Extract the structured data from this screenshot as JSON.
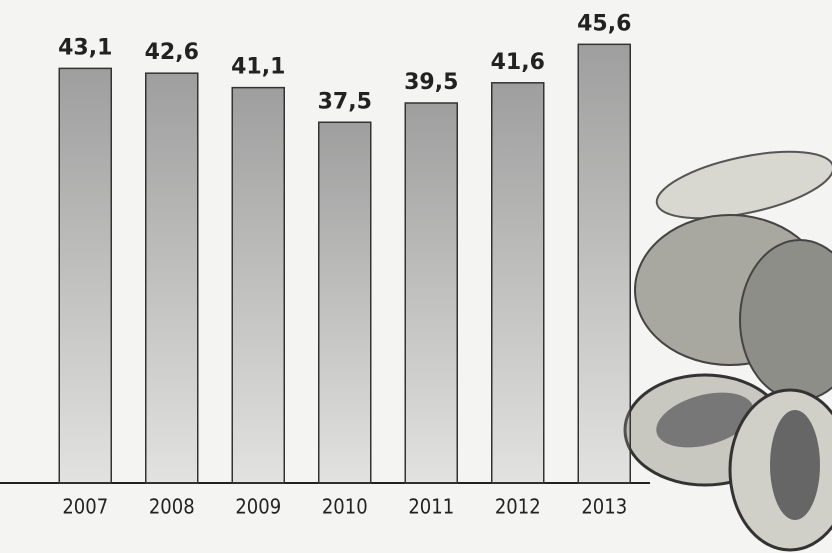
{
  "chart_data": {
    "type": "bar",
    "categories": [
      "2007",
      "2008",
      "2009",
      "2010",
      "2011",
      "2012",
      "2013"
    ],
    "values": [
      43.1,
      42.6,
      41.1,
      37.5,
      39.5,
      41.6,
      45.6
    ],
    "value_labels": [
      "43,1",
      "42,6",
      "41,1",
      "37,5",
      "39,5",
      "41,6",
      "45,6"
    ],
    "color": "#9a9a9a",
    "ylim": [
      0,
      50
    ]
  }
}
